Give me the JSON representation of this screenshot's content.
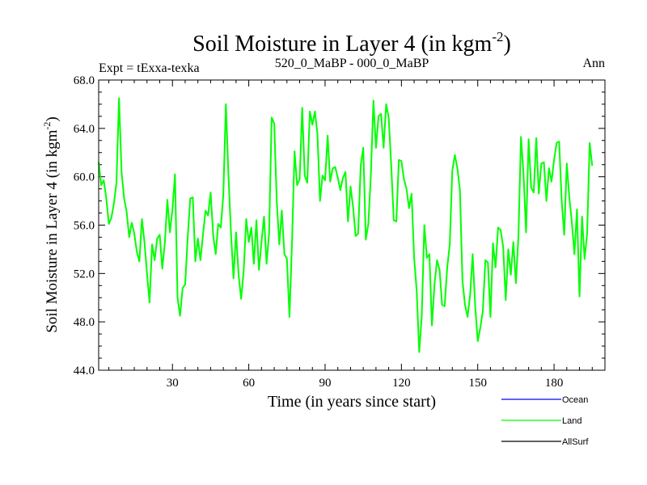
{
  "header": {
    "title_main": "Soil Moisture in Layer 4 (in kgm",
    "title_sup": "-2",
    "title_close": ")",
    "expt": "Expt = tExxa-texka",
    "period": "520_0_MaBP - 000_0_MaBP",
    "season": "Ann"
  },
  "chart_data": {
    "type": "line",
    "title": "Soil Moisture in Layer 4 (in kgm-2)",
    "xlabel": "Time (in years since start)",
    "ylabel": "Soil Moisture in Layer 4 (in kgm-2)",
    "ylabel_main": "Soil Moisture in Layer 4 (in kgm",
    "ylabel_sup": "-2",
    "ylabel_close": ")",
    "xlim": [
      1,
      200
    ],
    "ylim": [
      44.0,
      68.0
    ],
    "x_ticks": [
      30,
      60,
      90,
      120,
      150,
      180
    ],
    "x_tick_labels": [
      "30",
      "60",
      "90",
      "120",
      "150",
      "180"
    ],
    "y_ticks": [
      44,
      48,
      52,
      56,
      60,
      64,
      68
    ],
    "y_tick_labels": [
      "44.0",
      "48.0",
      "52.0",
      "56.0",
      "60.0",
      "64.0",
      "68.0"
    ],
    "legend": [
      {
        "name": "Ocean",
        "color": "#0000ff"
      },
      {
        "name": "Land",
        "color": "#00ff00"
      },
      {
        "name": "AllSurf",
        "color": "#000000"
      }
    ],
    "series": [
      {
        "name": "Land",
        "color": "#00ff00",
        "x_start": 1,
        "values": [
          61.2,
          59.3,
          59.7,
          58.2,
          56.1,
          56.6,
          57.8,
          59.5,
          66.5,
          60.4,
          58.2,
          57.1,
          55.0,
          56.2,
          55.3,
          53.8,
          53.0,
          56.5,
          54.6,
          52.0,
          49.6,
          54.4,
          53.1,
          54.9,
          55.2,
          52.4,
          54.5,
          58.1,
          55.4,
          57.3,
          60.2,
          50.0,
          48.5,
          50.8,
          51.1,
          55.0,
          58.2,
          58.3,
          53.0,
          54.9,
          53.1,
          55.2,
          57.2,
          56.8,
          58.7,
          55.2,
          53.6,
          56.1,
          55.8,
          58.5,
          66.0,
          60.2,
          55.4,
          51.6,
          55.4,
          51.9,
          49.9,
          52.2,
          56.5,
          54.6,
          55.8,
          52.8,
          56.4,
          52.3,
          54.6,
          56.7,
          52.8,
          55.4,
          64.9,
          64.4,
          58.0,
          54.4,
          57.2,
          53.6,
          53.2,
          48.4,
          54.6,
          62.1,
          59.3,
          59.8,
          65.7,
          60.1,
          59.5,
          65.4,
          64.3,
          65.4,
          63.5,
          58.0,
          60.1,
          59.7,
          63.4,
          59.6,
          60.7,
          60.8,
          59.9,
          58.9,
          59.9,
          60.4,
          56.3,
          59.2,
          57.5,
          55.1,
          55.3,
          60.9,
          62.4,
          54.8,
          56.1,
          60.2,
          66.3,
          62.4,
          65.0,
          65.2,
          62.4,
          66.0,
          64.9,
          60.9,
          56.4,
          56.3,
          61.4,
          61.3,
          59.8,
          59.0,
          57.4,
          58.6,
          53.3,
          50.6,
          45.5,
          48.5,
          56.0,
          53.3,
          53.6,
          47.7,
          51.1,
          53.1,
          52.3,
          49.4,
          49.3,
          52.5,
          54.4,
          60.5,
          61.8,
          60.7,
          58.9,
          51.4,
          49.4,
          48.4,
          50.2,
          53.6,
          49.3,
          46.4,
          47.5,
          48.9,
          53.1,
          52.9,
          48.4,
          54.5,
          52.5,
          55.8,
          55.6,
          54.2,
          49.8,
          54.0,
          51.9,
          54.6,
          51.2,
          55.1,
          63.3,
          60.2,
          55.4,
          63.1,
          59.1,
          58.7,
          63.2,
          58.6,
          61.1,
          61.2,
          58.0,
          60.7,
          59.6,
          61.4,
          62.8,
          62.9,
          58.0,
          55.2,
          61.1,
          58.3,
          56.2,
          53.6,
          57.3,
          50.1,
          56.7,
          53.2,
          55.3,
          62.8,
          60.9
        ]
      }
    ]
  }
}
